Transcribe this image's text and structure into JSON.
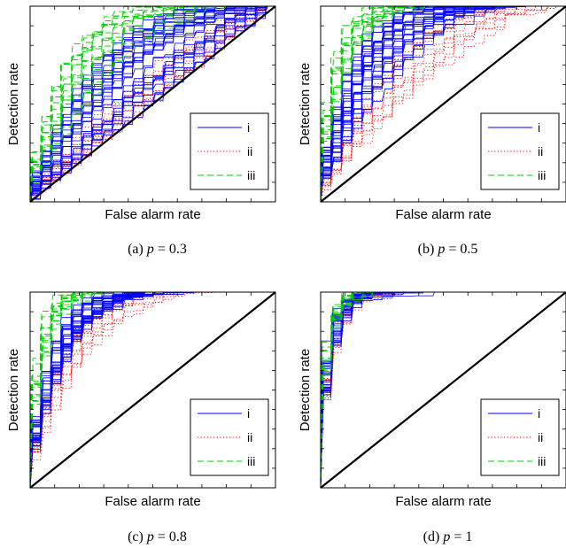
{
  "figure": {
    "panels": [
      {
        "caption_letter": "(a)",
        "p_value": "0.3"
      },
      {
        "caption_letter": "(b)",
        "p_value": "0.5"
      },
      {
        "caption_letter": "(c)",
        "p_value": "0.8"
      },
      {
        "caption_letter": "(d)",
        "p_value": "1"
      }
    ]
  },
  "colors": {
    "i": "#0000ff",
    "ii": "#ff0000",
    "iii": "#00cc00",
    "diagonal": "#000000"
  },
  "chart_data": [
    {
      "type": "line",
      "xlabel": "False alarm rate",
      "ylabel": "Detection rate",
      "xlim": [
        0,
        1
      ],
      "ylim": [
        0,
        1
      ],
      "grid": false,
      "legend": "bottom-right",
      "series": [
        {
          "name": "i",
          "style": "solid",
          "curve_count": 30,
          "tpr_at_fpr_0.2_range": [
            0.2,
            0.55
          ]
        },
        {
          "name": "ii",
          "style": "dotted",
          "curve_count": 12,
          "tpr_at_fpr_0.2_range": [
            0.15,
            0.32
          ]
        },
        {
          "name": "iii",
          "style": "dashed",
          "curve_count": 15,
          "tpr_at_fpr_0.2_range": [
            0.4,
            0.78
          ]
        }
      ]
    },
    {
      "type": "line",
      "xlabel": "False alarm rate",
      "ylabel": "Detection rate",
      "xlim": [
        0,
        1
      ],
      "ylim": [
        0,
        1
      ],
      "grid": false,
      "legend": "bottom-right",
      "series": [
        {
          "name": "i",
          "style": "solid",
          "curve_count": 30,
          "tpr_at_fpr_0.2_range": [
            0.45,
            0.85
          ]
        },
        {
          "name": "ii",
          "style": "dotted",
          "curve_count": 12,
          "tpr_at_fpr_0.2_range": [
            0.3,
            0.5
          ]
        },
        {
          "name": "iii",
          "style": "dashed",
          "curve_count": 15,
          "tpr_at_fpr_0.2_range": [
            0.85,
            0.98
          ]
        }
      ]
    },
    {
      "type": "line",
      "xlabel": "False alarm rate",
      "ylabel": "Detection rate",
      "xlim": [
        0,
        1
      ],
      "ylim": [
        0,
        1
      ],
      "grid": false,
      "legend": "bottom-right",
      "series": [
        {
          "name": "i",
          "style": "solid",
          "curve_count": 30,
          "tpr_at_fpr_0.2_range": [
            0.72,
            0.9
          ]
        },
        {
          "name": "ii",
          "style": "dotted",
          "curve_count": 12,
          "tpr_at_fpr_0.2_range": [
            0.55,
            0.78
          ]
        },
        {
          "name": "iii",
          "style": "dashed",
          "curve_count": 15,
          "tpr_at_fpr_0.2_range": [
            0.95,
            1.0
          ]
        }
      ]
    },
    {
      "type": "line",
      "xlabel": "False alarm rate",
      "ylabel": "Detection rate",
      "xlim": [
        0,
        1
      ],
      "ylim": [
        0,
        1
      ],
      "grid": false,
      "legend": "bottom-right",
      "series": [
        {
          "name": "i",
          "style": "solid",
          "curve_count": 30,
          "tpr_at_fpr_0.2_range": [
            0.97,
            1.0
          ]
        },
        {
          "name": "ii",
          "style": "dotted",
          "curve_count": 12,
          "tpr_at_fpr_0.2_range": [
            0.96,
            0.99
          ]
        },
        {
          "name": "iii",
          "style": "dashed",
          "curve_count": 15,
          "tpr_at_fpr_0.2_range": [
            0.99,
            1.0
          ]
        }
      ]
    }
  ]
}
